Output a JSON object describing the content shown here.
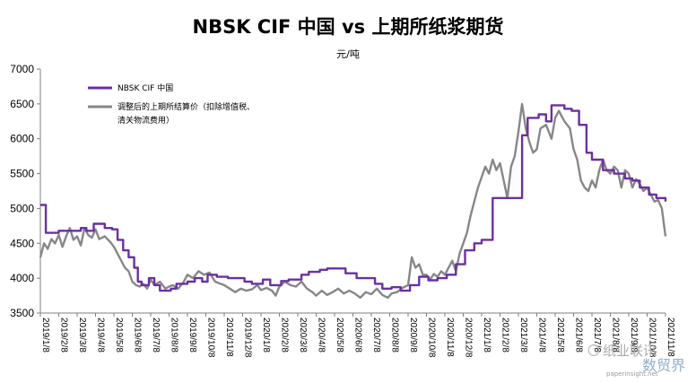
{
  "chart_data": {
    "type": "line",
    "title": "NBSK CIF 中国 vs 上期所纸浆期货",
    "ylabel": "元/吨",
    "ylim": [
      3500,
      7000
    ],
    "yticks": [
      3500,
      4000,
      4500,
      5000,
      5500,
      6000,
      6500,
      7000
    ],
    "x_labels": [
      "2019/1/8",
      "2019/2/8",
      "2019/3/8",
      "2019/4/8",
      "2019/5/8",
      "2019/6/8",
      "2019/7/8",
      "2019/8/8",
      "2019/9/8",
      "2019/10/8",
      "2019/11/8",
      "2019/12/8",
      "2020/1/8",
      "2020/2/8",
      "2020/3/8",
      "2020/4/8",
      "2020/5/8",
      "2020/6/8",
      "2020/7/8",
      "2020/8/8",
      "2020/9/8",
      "2020/10/8",
      "2020/11/8",
      "2020/12/8",
      "2021/1/8",
      "2021/2/8",
      "2021/3/8",
      "2021/4/8",
      "2021/5/8",
      "2021/6/8",
      "2021/7/8",
      "2021/8/8",
      "2021/9/8",
      "2021/10/8",
      "2021/11/8"
    ],
    "x_labels_visible": [
      "2019/1/8",
      "2019/2/8",
      "2019/3/8",
      "2019/4/8",
      "2019/5/8",
      "2019/6/8",
      "2019/7/8",
      "2019/8/8",
      "2019/9/8",
      "2019/10/8",
      "2019/11/8",
      "2019/12/8",
      "2020/1/8",
      "2020/2/8",
      "2020/3/8",
      "2020/4/8",
      "2020/5/8",
      "2020/6/8",
      "2020/7/8",
      "2020/8/8",
      "2020/9/8",
      "2020/10/8",
      "2020/11/8",
      "2020/12/8",
      "2021/1/8",
      "2021/2/8",
      "2021/3/8",
      "2021/4/8",
      "2021/5/8",
      "2021/6/8",
      "2021/7/8",
      "2021/8/8",
      "2021/9/8",
      "2021/10/8",
      "2021/11/8"
    ],
    "grid": false,
    "legend_position": "top-left",
    "series": [
      {
        "name": "NBSK CIF 中国",
        "color": "#6a30a0",
        "line": "step",
        "points": [
          [
            0,
            5050
          ],
          [
            0.3,
            4650
          ],
          [
            1.0,
            4680
          ],
          [
            2.2,
            4720
          ],
          [
            2.5,
            4680
          ],
          [
            2.9,
            4780
          ],
          [
            3.5,
            4720
          ],
          [
            3.9,
            4700
          ],
          [
            4.2,
            4550
          ],
          [
            4.5,
            4400
          ],
          [
            4.8,
            4300
          ],
          [
            5.1,
            4150
          ],
          [
            5.3,
            3950
          ],
          [
            5.5,
            3900
          ],
          [
            5.9,
            4000
          ],
          [
            6.2,
            3900
          ],
          [
            6.5,
            3820
          ],
          [
            7.1,
            3850
          ],
          [
            7.4,
            3920
          ],
          [
            8.0,
            3950
          ],
          [
            8.4,
            4000
          ],
          [
            8.8,
            3950
          ],
          [
            9.1,
            4050
          ],
          [
            9.6,
            4020
          ],
          [
            10.2,
            4000
          ],
          [
            11.1,
            3950
          ],
          [
            11.5,
            3920
          ],
          [
            12.1,
            3980
          ],
          [
            12.5,
            3900
          ],
          [
            13.1,
            3960
          ],
          [
            13.5,
            3980
          ],
          [
            14.2,
            4050
          ],
          [
            14.6,
            4090
          ],
          [
            15.2,
            4120
          ],
          [
            15.6,
            4140
          ],
          [
            16.6,
            4070
          ],
          [
            17.2,
            4000
          ],
          [
            18.2,
            3920
          ],
          [
            18.6,
            3850
          ],
          [
            19.1,
            3870
          ],
          [
            19.6,
            3820
          ],
          [
            20.1,
            3900
          ],
          [
            20.6,
            4020
          ],
          [
            21.1,
            3970
          ],
          [
            21.6,
            4000
          ],
          [
            22.1,
            4050
          ],
          [
            22.6,
            4200
          ],
          [
            23.1,
            4400
          ],
          [
            23.6,
            4500
          ],
          [
            24.0,
            4550
          ],
          [
            24.6,
            5150
          ],
          [
            25.6,
            5150
          ],
          [
            26.2,
            6050
          ],
          [
            26.5,
            6300
          ],
          [
            27.1,
            6350
          ],
          [
            27.5,
            6250
          ],
          [
            27.8,
            6480
          ],
          [
            28.5,
            6430
          ],
          [
            28.9,
            6400
          ],
          [
            29.3,
            6200
          ],
          [
            29.7,
            5800
          ],
          [
            30.0,
            5700
          ],
          [
            30.6,
            5550
          ],
          [
            31.2,
            5500
          ],
          [
            31.8,
            5430
          ],
          [
            32.2,
            5400
          ],
          [
            32.6,
            5300
          ],
          [
            33.1,
            5200
          ],
          [
            33.5,
            5150
          ],
          [
            34.0,
            5100
          ]
        ]
      },
      {
        "name": "调整后的上期所结算价（扣除增值税、清关物流费用）",
        "color": "#878787",
        "line": "smooth",
        "points": [
          [
            0,
            4300
          ],
          [
            0.2,
            4500
          ],
          [
            0.4,
            4420
          ],
          [
            0.6,
            4560
          ],
          [
            0.8,
            4500
          ],
          [
            1.0,
            4620
          ],
          [
            1.2,
            4450
          ],
          [
            1.4,
            4600
          ],
          [
            1.6,
            4720
          ],
          [
            1.8,
            4550
          ],
          [
            2.0,
            4600
          ],
          [
            2.2,
            4470
          ],
          [
            2.4,
            4720
          ],
          [
            2.6,
            4620
          ],
          [
            2.8,
            4580
          ],
          [
            3.0,
            4700
          ],
          [
            3.2,
            4560
          ],
          [
            3.5,
            4600
          ],
          [
            3.8,
            4520
          ],
          [
            4.0,
            4450
          ],
          [
            4.2,
            4350
          ],
          [
            4.4,
            4250
          ],
          [
            4.6,
            4150
          ],
          [
            4.8,
            4100
          ],
          [
            5.0,
            3950
          ],
          [
            5.2,
            3900
          ],
          [
            5.4,
            3880
          ],
          [
            5.6,
            3920
          ],
          [
            5.8,
            3850
          ],
          [
            6.0,
            3980
          ],
          [
            6.2,
            3900
          ],
          [
            6.5,
            3950
          ],
          [
            6.8,
            3850
          ],
          [
            7.0,
            3880
          ],
          [
            7.2,
            3900
          ],
          [
            7.5,
            3850
          ],
          [
            7.8,
            3950
          ],
          [
            8.0,
            4050
          ],
          [
            8.3,
            4000
          ],
          [
            8.6,
            4100
          ],
          [
            8.9,
            4050
          ],
          [
            9.2,
            4080
          ],
          [
            9.5,
            3950
          ],
          [
            9.8,
            3920
          ],
          [
            10.0,
            3900
          ],
          [
            10.3,
            3850
          ],
          [
            10.6,
            3800
          ],
          [
            10.9,
            3850
          ],
          [
            11.2,
            3820
          ],
          [
            11.5,
            3840
          ],
          [
            11.8,
            3900
          ],
          [
            12.0,
            3830
          ],
          [
            12.3,
            3860
          ],
          [
            12.6,
            3820
          ],
          [
            12.8,
            3750
          ],
          [
            13.0,
            3880
          ],
          [
            13.3,
            3950
          ],
          [
            13.6,
            3900
          ],
          [
            13.9,
            3880
          ],
          [
            14.2,
            3950
          ],
          [
            14.5,
            3850
          ],
          [
            14.8,
            3800
          ],
          [
            15.0,
            3750
          ],
          [
            15.3,
            3820
          ],
          [
            15.6,
            3760
          ],
          [
            15.9,
            3800
          ],
          [
            16.2,
            3850
          ],
          [
            16.5,
            3780
          ],
          [
            16.8,
            3820
          ],
          [
            17.1,
            3780
          ],
          [
            17.4,
            3720
          ],
          [
            17.7,
            3800
          ],
          [
            18.0,
            3770
          ],
          [
            18.3,
            3850
          ],
          [
            18.6,
            3760
          ],
          [
            18.9,
            3720
          ],
          [
            19.1,
            3780
          ],
          [
            19.4,
            3800
          ],
          [
            19.7,
            3860
          ],
          [
            20.0,
            3900
          ],
          [
            20.2,
            4300
          ],
          [
            20.4,
            4150
          ],
          [
            20.6,
            4200
          ],
          [
            20.8,
            4050
          ],
          [
            21.0,
            4050
          ],
          [
            21.2,
            3980
          ],
          [
            21.4,
            4060
          ],
          [
            21.6,
            4020
          ],
          [
            21.8,
            4100
          ],
          [
            22.0,
            4050
          ],
          [
            22.2,
            4150
          ],
          [
            22.4,
            4250
          ],
          [
            22.6,
            4100
          ],
          [
            22.8,
            4350
          ],
          [
            23.0,
            4500
          ],
          [
            23.2,
            4650
          ],
          [
            23.4,
            4900
          ],
          [
            23.6,
            5100
          ],
          [
            23.8,
            5300
          ],
          [
            24.0,
            5450
          ],
          [
            24.2,
            5600
          ],
          [
            24.4,
            5500
          ],
          [
            24.6,
            5700
          ],
          [
            24.8,
            5550
          ],
          [
            25.0,
            5650
          ],
          [
            25.2,
            5400
          ],
          [
            25.4,
            5150
          ],
          [
            25.6,
            5600
          ],
          [
            25.8,
            5750
          ],
          [
            26.0,
            6100
          ],
          [
            26.2,
            6500
          ],
          [
            26.4,
            6150
          ],
          [
            26.6,
            5950
          ],
          [
            26.8,
            5800
          ],
          [
            27.0,
            5850
          ],
          [
            27.2,
            6150
          ],
          [
            27.5,
            6200
          ],
          [
            27.8,
            6000
          ],
          [
            28.0,
            6300
          ],
          [
            28.2,
            6400
          ],
          [
            28.5,
            6250
          ],
          [
            28.8,
            6150
          ],
          [
            29.0,
            5850
          ],
          [
            29.2,
            5700
          ],
          [
            29.4,
            5400
          ],
          [
            29.6,
            5300
          ],
          [
            29.8,
            5250
          ],
          [
            30.0,
            5400
          ],
          [
            30.2,
            5300
          ],
          [
            30.4,
            5550
          ],
          [
            30.6,
            5700
          ],
          [
            30.8,
            5550
          ],
          [
            31.0,
            5500
          ],
          [
            31.2,
            5600
          ],
          [
            31.4,
            5550
          ],
          [
            31.6,
            5300
          ],
          [
            31.8,
            5550
          ],
          [
            32.0,
            5500
          ],
          [
            32.2,
            5300
          ],
          [
            32.4,
            5420
          ],
          [
            32.6,
            5350
          ],
          [
            32.8,
            5250
          ],
          [
            33.0,
            5300
          ],
          [
            33.2,
            5200
          ],
          [
            33.4,
            5100
          ],
          [
            33.6,
            5120
          ],
          [
            33.8,
            5000
          ],
          [
            34.0,
            4600
          ]
        ]
      }
    ]
  },
  "watermark": {
    "brand_text": "纸业联讯",
    "site_text": "paperinsight.net",
    "corner_text": "数贸界",
    "symbol_text": "〇"
  }
}
